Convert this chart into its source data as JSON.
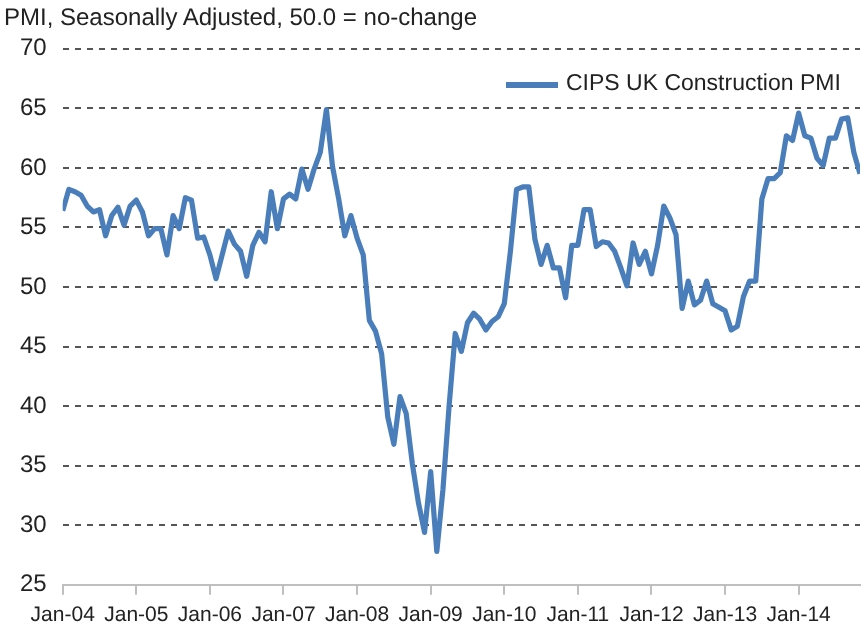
{
  "chart_data": {
    "type": "line",
    "title": "PMI, Seasonally Adjusted, 50.0 = no-change",
    "x": [
      "2004-01",
      "2004-02",
      "2004-03",
      "2004-04",
      "2004-05",
      "2004-06",
      "2004-07",
      "2004-08",
      "2004-09",
      "2004-10",
      "2004-11",
      "2004-12",
      "2005-01",
      "2005-02",
      "2005-03",
      "2005-04",
      "2005-05",
      "2005-06",
      "2005-07",
      "2005-08",
      "2005-09",
      "2005-10",
      "2005-11",
      "2005-12",
      "2006-01",
      "2006-02",
      "2006-03",
      "2006-04",
      "2006-05",
      "2006-06",
      "2006-07",
      "2006-08",
      "2006-09",
      "2006-10",
      "2006-11",
      "2006-12",
      "2007-01",
      "2007-02",
      "2007-03",
      "2007-04",
      "2007-05",
      "2007-06",
      "2007-07",
      "2007-08",
      "2007-09",
      "2007-10",
      "2007-11",
      "2007-12",
      "2008-01",
      "2008-02",
      "2008-03",
      "2008-04",
      "2008-05",
      "2008-06",
      "2008-07",
      "2008-08",
      "2008-09",
      "2008-10",
      "2008-11",
      "2008-12",
      "2009-01",
      "2009-02",
      "2009-03",
      "2009-04",
      "2009-05",
      "2009-06",
      "2009-07",
      "2009-08",
      "2009-09",
      "2009-10",
      "2009-11",
      "2009-12",
      "2010-01",
      "2010-02",
      "2010-03",
      "2010-04",
      "2010-05",
      "2010-06",
      "2010-07",
      "2010-08",
      "2010-09",
      "2010-10",
      "2010-11",
      "2010-12",
      "2011-01",
      "2011-02",
      "2011-03",
      "2011-04",
      "2011-05",
      "2011-06",
      "2011-07",
      "2011-08",
      "2011-09",
      "2011-10",
      "2011-11",
      "2011-12",
      "2012-01",
      "2012-02",
      "2012-03",
      "2012-04",
      "2012-05",
      "2012-06",
      "2012-07",
      "2012-08",
      "2012-09",
      "2012-10",
      "2012-11",
      "2012-12",
      "2013-01",
      "2013-02",
      "2013-03",
      "2013-04",
      "2013-05",
      "2013-06",
      "2013-07",
      "2013-08",
      "2013-09",
      "2013-10",
      "2013-11",
      "2013-12",
      "2014-01",
      "2014-02",
      "2014-03",
      "2014-04",
      "2014-05",
      "2014-06",
      "2014-07",
      "2014-08",
      "2014-09",
      "2014-10",
      "2014-11"
    ],
    "series": [
      {
        "name": "CIPS UK Construction PMI",
        "color": "#4a7ebb",
        "values": [
          56.4,
          58.2,
          58.0,
          57.7,
          56.8,
          56.3,
          56.5,
          54.3,
          56.0,
          56.7,
          55.2,
          56.8,
          57.3,
          56.3,
          54.3,
          54.9,
          54.9,
          52.7,
          56.0,
          54.9,
          57.5,
          57.3,
          54.1,
          54.2,
          52.7,
          50.7,
          52.7,
          54.7,
          53.6,
          53.0,
          50.9,
          53.5,
          54.6,
          53.8,
          58.0,
          54.9,
          57.4,
          57.8,
          57.4,
          59.9,
          58.2,
          59.9,
          61.3,
          64.9,
          60.1,
          57.4,
          54.3,
          56.0,
          54.1,
          52.7,
          47.2,
          46.3,
          44.4,
          39.1,
          36.8,
          40.8,
          39.4,
          35.2,
          31.9,
          29.4,
          34.5,
          27.8,
          33.0,
          40.0,
          46.1,
          44.6,
          47.0,
          47.8,
          47.3,
          46.4,
          47.1,
          47.5,
          48.6,
          53.0,
          58.2,
          58.4,
          58.4,
          54.0,
          51.9,
          53.5,
          51.6,
          51.6,
          49.1,
          53.5,
          53.5,
          56.5,
          56.5,
          53.4,
          53.8,
          53.7,
          53.0,
          51.6,
          50.1,
          53.7,
          51.9,
          53.0,
          51.1,
          53.5,
          56.8,
          55.8,
          54.4,
          48.2,
          50.5,
          48.5,
          48.9,
          50.5,
          48.6,
          48.3,
          48.0,
          46.4,
          46.7,
          49.2,
          50.5,
          50.5,
          57.4,
          59.1,
          59.1,
          59.6,
          62.7,
          62.3,
          64.6,
          62.7,
          62.5,
          60.8,
          60.2,
          62.5,
          62.5,
          64.1,
          64.2,
          61.3,
          59.5
        ]
      }
    ],
    "xlim": [
      "2004-01",
      "2014-11"
    ],
    "xticks": [
      {
        "value": "2004-01",
        "label": "Jan-04"
      },
      {
        "value": "2005-01",
        "label": "Jan-05"
      },
      {
        "value": "2006-01",
        "label": "Jan-06"
      },
      {
        "value": "2007-01",
        "label": "Jan-07"
      },
      {
        "value": "2008-01",
        "label": "Jan-08"
      },
      {
        "value": "2009-01",
        "label": "Jan-09"
      },
      {
        "value": "2010-01",
        "label": "Jan-10"
      },
      {
        "value": "2011-01",
        "label": "Jan-11"
      },
      {
        "value": "2012-01",
        "label": "Jan-12"
      },
      {
        "value": "2013-01",
        "label": "Jan-13"
      },
      {
        "value": "2014-01",
        "label": "Jan-14"
      }
    ],
    "ylim": [
      25,
      70
    ],
    "yticks": [
      25,
      30,
      35,
      40,
      45,
      50,
      55,
      60,
      65,
      70
    ],
    "grid": "y",
    "legend": "top right"
  }
}
